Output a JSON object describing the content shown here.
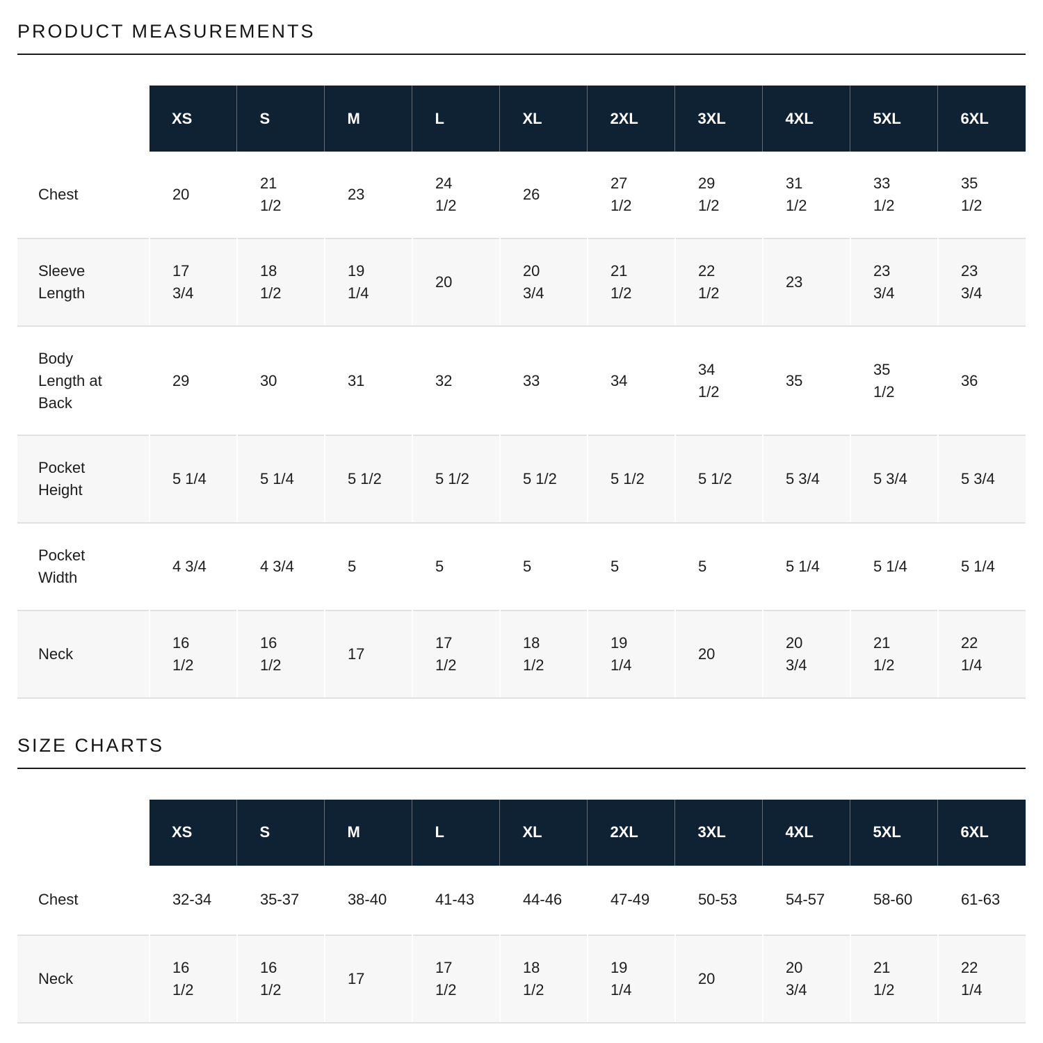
{
  "theme": {
    "header_bg": "#0e2234",
    "header_text": "#ffffff",
    "stripe_bg": "#f7f7f7",
    "divider": "#e1e1e1",
    "body_text": "#1a1a1a"
  },
  "product_measurements": {
    "title": "PRODUCT MEASUREMENTS",
    "table": {
      "columns": [
        "XS",
        "S",
        "M",
        "L",
        "XL",
        "2XL",
        "3XL",
        "4XL",
        "5XL",
        "6XL"
      ],
      "rows": [
        {
          "label": "Chest",
          "values": [
            "20",
            "21\n1/2",
            "23",
            "24\n1/2",
            "26",
            "27\n1/2",
            "29\n1/2",
            "31\n1/2",
            "33\n1/2",
            "35\n1/2"
          ]
        },
        {
          "label": "Sleeve\nLength",
          "values": [
            "17\n3/4",
            "18\n1/2",
            "19\n1/4",
            "20",
            "20\n3/4",
            "21\n1/2",
            "22\n1/2",
            "23",
            "23\n3/4",
            "23\n3/4"
          ]
        },
        {
          "label": "Body\nLength at\nBack",
          "values": [
            "29",
            "30",
            "31",
            "32",
            "33",
            "34",
            "34\n1/2",
            "35",
            "35\n1/2",
            "36"
          ]
        },
        {
          "label": "Pocket\nHeight",
          "values": [
            "5 1/4",
            "5 1/4",
            "5 1/2",
            "5 1/2",
            "5 1/2",
            "5 1/2",
            "5 1/2",
            "5 3/4",
            "5 3/4",
            "5 3/4"
          ]
        },
        {
          "label": "Pocket\nWidth",
          "values": [
            "4 3/4",
            "4 3/4",
            "5",
            "5",
            "5",
            "5",
            "5",
            "5 1/4",
            "5 1/4",
            "5 1/4"
          ]
        },
        {
          "label": "Neck",
          "values": [
            "16\n1/2",
            "16\n1/2",
            "17",
            "17\n1/2",
            "18\n1/2",
            "19\n1/4",
            "20",
            "20\n3/4",
            "21\n1/2",
            "22\n1/4"
          ]
        }
      ]
    }
  },
  "size_charts": {
    "title": "SIZE CHARTS",
    "table": {
      "columns": [
        "XS",
        "S",
        "M",
        "L",
        "XL",
        "2XL",
        "3XL",
        "4XL",
        "5XL",
        "6XL"
      ],
      "rows": [
        {
          "label": "Chest",
          "values": [
            "32-34",
            "35-37",
            "38-40",
            "41-43",
            "44-46",
            "47-49",
            "50-53",
            "54-57",
            "58-60",
            "61-63"
          ]
        },
        {
          "label": "Neck",
          "values": [
            "16\n1/2",
            "16\n1/2",
            "17",
            "17\n1/2",
            "18\n1/2",
            "19\n1/4",
            "20",
            "20\n3/4",
            "21\n1/2",
            "22\n1/4"
          ]
        }
      ]
    }
  }
}
